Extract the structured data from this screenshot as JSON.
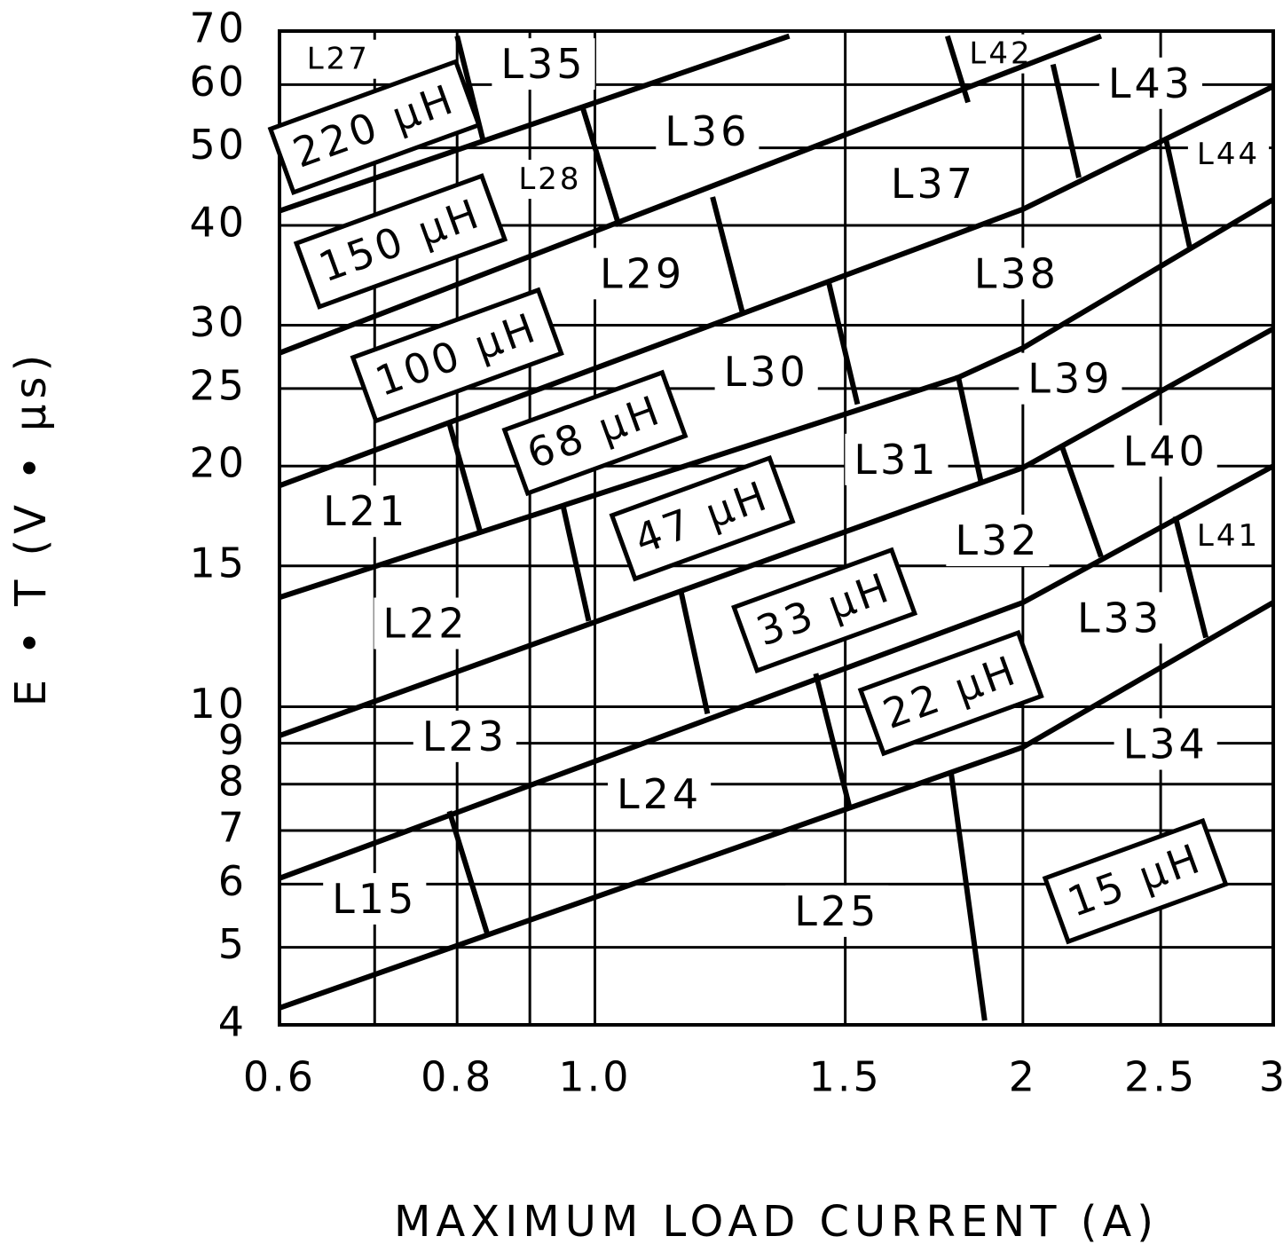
{
  "chart_data": {
    "type": "line",
    "x_label": "MAXIMUM LOAD CURRENT (A)",
    "y_label": "E • T (V • μs)",
    "log_x": true,
    "log_y": true,
    "grid": true,
    "color": "#000000",
    "xlim": [
      0.6,
      3
    ],
    "ylim": [
      4,
      70
    ],
    "xticks": [
      0.6,
      0.8,
      {
        "value": 1,
        "label": "1.0"
      },
      1.5,
      2,
      2.5,
      3
    ],
    "xgrid_extra": [
      0.7,
      0.9
    ],
    "yticks": [
      4,
      5,
      6,
      7,
      8,
      9,
      10,
      15,
      20,
      25,
      30,
      40,
      50,
      60,
      70
    ],
    "boundaries": [
      {
        "x": [
          0.6,
          2,
          3
        ],
        "y": [
          4.2,
          8.9,
          13.5
        ]
      },
      {
        "x": [
          0.6,
          2,
          3
        ],
        "y": [
          6.1,
          13.5,
          20
        ]
      },
      {
        "x": [
          0.6,
          2,
          3
        ],
        "y": [
          9.2,
          19.9,
          29.7
        ]
      },
      {
        "x": [
          0.6,
          1.8,
          2,
          3
        ],
        "y": [
          13.7,
          25.8,
          28.1,
          43.1
        ]
      },
      {
        "x": [
          0.6,
          2,
          3
        ],
        "y": [
          18.9,
          41.9,
          59.7
        ]
      },
      {
        "x": [
          0.6,
          2.27
        ],
        "y": [
          27.7,
          69
        ]
      },
      {
        "x": [
          0.6,
          1.37
        ],
        "y": [
          41.7,
          69
        ]
      },
      {
        "x": [
          0.79,
          0.84
        ],
        "y": [
          7.4,
          5.2
        ]
      },
      {
        "x": [
          1.43,
          1.51
        ],
        "y": [
          11.0,
          7.5
        ]
      },
      {
        "x": [
          1.78,
          1.88
        ],
        "y": [
          8.3,
          4.05
        ]
      },
      {
        "x": [
          1.15,
          1.2
        ],
        "y": [
          13.9,
          9.8
        ]
      },
      {
        "x": [
          0.95,
          0.99
        ],
        "y": [
          17.8,
          12.8
        ]
      },
      {
        "x": [
          0.79,
          0.83
        ],
        "y": [
          22.6,
          16.6
        ]
      },
      {
        "x": [
          2.13,
          2.27
        ],
        "y": [
          21.2,
          15.4
        ]
      },
      {
        "x": [
          2.56,
          2.69
        ],
        "y": [
          17.3,
          12.2
        ]
      },
      {
        "x": [
          1.8,
          1.87
        ],
        "y": [
          26.0,
          19.0
        ]
      },
      {
        "x": [
          1.46,
          1.53
        ],
        "y": [
          34.0,
          23.9
        ]
      },
      {
        "x": [
          1.21,
          1.27
        ],
        "y": [
          43.4,
          31.1
        ]
      },
      {
        "x": [
          0.98,
          1.04
        ],
        "y": [
          56.3,
          39.9
        ]
      },
      {
        "x": [
          0.8,
          0.835
        ],
        "y": [
          69,
          50.8
        ]
      },
      {
        "x": [
          2.1,
          2.19
        ],
        "y": [
          63.6,
          45.9
        ]
      },
      {
        "x": [
          2.52,
          2.62
        ],
        "y": [
          51.5,
          37.6
        ]
      },
      {
        "x": [
          1.77,
          1.83
        ],
        "y": [
          69,
          57
        ]
      }
    ],
    "regions": [
      {
        "label": "L27",
        "x": 0.66,
        "y": 64.3,
        "small": true
      },
      {
        "label": "L35",
        "x": 0.92,
        "y": 63.1
      },
      {
        "label": "L42",
        "x": 1.93,
        "y": 65.3,
        "small": true
      },
      {
        "label": "L43",
        "x": 2.46,
        "y": 59.7
      },
      {
        "label": "L36",
        "x": 1.2,
        "y": 52
      },
      {
        "label": "L44",
        "x": 2.79,
        "y": 48.9,
        "small": true
      },
      {
        "label": "L28",
        "x": 0.93,
        "y": 45.5,
        "small": true
      },
      {
        "label": "L37",
        "x": 1.73,
        "y": 44.7
      },
      {
        "label": "L29",
        "x": 1.08,
        "y": 34.5
      },
      {
        "label": "L38",
        "x": 1.98,
        "y": 34.5
      },
      {
        "label": "L30",
        "x": 1.32,
        "y": 26.0
      },
      {
        "label": "L39",
        "x": 2.16,
        "y": 25.5
      },
      {
        "label": "L31",
        "x": 1.63,
        "y": 20.2
      },
      {
        "label": "L40",
        "x": 2.52,
        "y": 20.7
      },
      {
        "label": "L21",
        "x": 0.69,
        "y": 17.4
      },
      {
        "label": "L32",
        "x": 1.92,
        "y": 16.0
      },
      {
        "label": "L41",
        "x": 2.79,
        "y": 16.3,
        "small": true
      },
      {
        "label": "L22",
        "x": 0.76,
        "y": 12.6
      },
      {
        "label": "L33",
        "x": 2.34,
        "y": 12.8
      },
      {
        "label": "L23",
        "x": 0.81,
        "y": 9.1
      },
      {
        "label": "L34",
        "x": 2.52,
        "y": 8.9
      },
      {
        "label": "L24",
        "x": 1.11,
        "y": 7.7
      },
      {
        "label": "L15",
        "x": 0.7,
        "y": 5.7
      },
      {
        "label": "L25",
        "x": 1.48,
        "y": 5.5
      }
    ],
    "inductances": [
      {
        "label": "220 μH",
        "x": 0.7,
        "y": 53.1
      },
      {
        "label": "150 μH",
        "x": 0.73,
        "y": 38.2
      },
      {
        "label": "100 μH",
        "x": 0.8,
        "y": 27.5
      },
      {
        "label": "68 μH",
        "x": 1.0,
        "y": 22.0
      },
      {
        "label": "47 μH",
        "x": 1.19,
        "y": 17.2
      },
      {
        "label": "33 μH",
        "x": 1.45,
        "y": 13.2
      },
      {
        "label": "22 μH",
        "x": 1.78,
        "y": 10.4
      },
      {
        "label": "15 μH",
        "x": 2.4,
        "y": 6.05
      }
    ]
  }
}
